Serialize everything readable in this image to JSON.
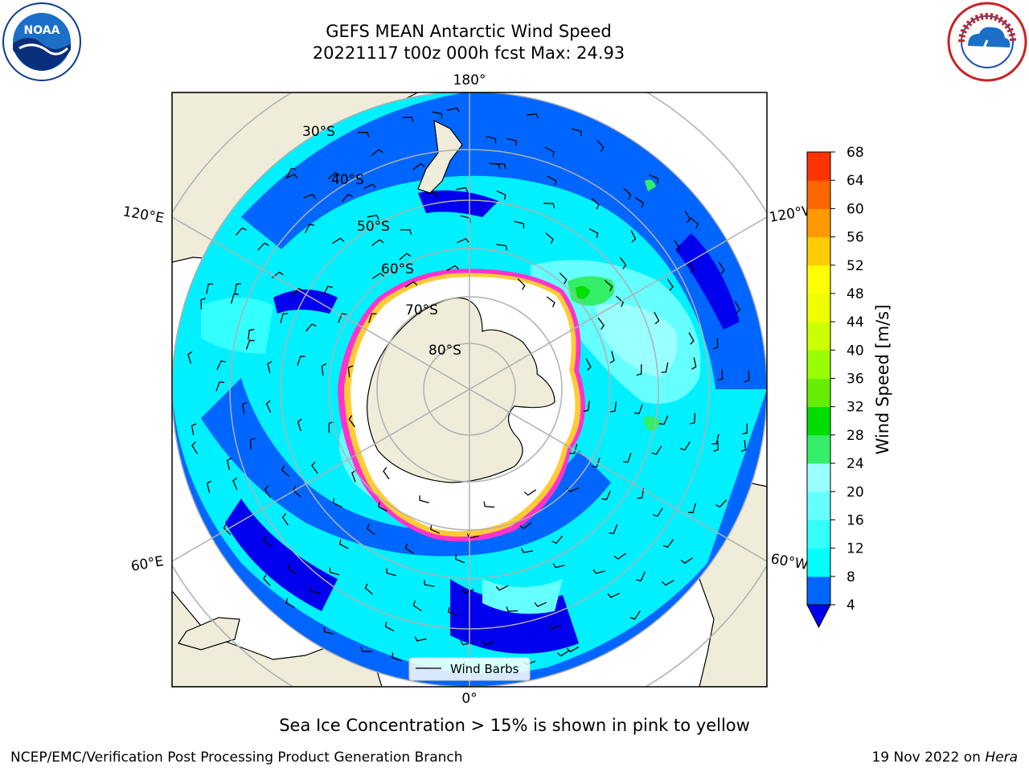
{
  "header": {
    "title_line1": "GEFS MEAN Antarctic Wind Speed",
    "title_line2": "20221117 t00z 000h fcst   Max: 24.93"
  },
  "map": {
    "projection": "south-polar-stereographic",
    "longitude_labels": [
      "180°",
      "120°E",
      "120°W",
      "60°E",
      "60°W",
      "0°"
    ],
    "latitude_labels": [
      "30°S",
      "40°S",
      "50°S",
      "60°S",
      "70°S",
      "80°S"
    ],
    "land_color": "#efedd9",
    "ice_color": "#ffffff",
    "ice_edge_colors": [
      "#ff33cc",
      "#ffcc33"
    ]
  },
  "legend": {
    "label": "Wind Barbs"
  },
  "colorbar": {
    "title": "Wind Speed [m/s]",
    "ticks": [
      4,
      8,
      12,
      16,
      20,
      24,
      28,
      32,
      36,
      40,
      44,
      48,
      52,
      56,
      60,
      64,
      68
    ],
    "colors": [
      "#0066ff",
      "#00ffff",
      "#33ffff",
      "#66ffff",
      "#99ffff",
      "#33ee66",
      "#00dd00",
      "#66ee00",
      "#99ff00",
      "#ccff00",
      "#eeff00",
      "#ffff00",
      "#ffcc00",
      "#ff9900",
      "#ff6600",
      "#ff3300",
      "#ff0000"
    ],
    "under_color": "#0000ee"
  },
  "caption": "Sea Ice Concentration > 15% is shown in pink to yellow",
  "footer": {
    "left": "NCEP/EMC/Verification Post Processing Product Generation Branch",
    "right_prefix": "19 Nov 2022 on ",
    "right_italic": "Hera"
  },
  "logos": {
    "noaa_text": "NOAA",
    "nws_ring_text": "NATIONAL WEATHER SERVICE"
  }
}
